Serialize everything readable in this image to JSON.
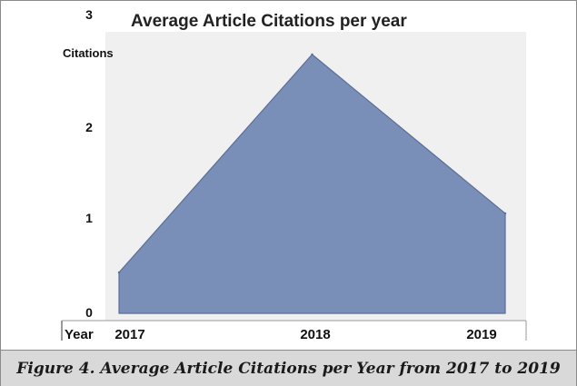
{
  "figure_caption": "Figure 4. Average Article Citations per Year from 2017 to 2019",
  "chart_data": {
    "type": "area",
    "title": "Average Article Citations per year",
    "ylabel": "Citations",
    "xlabel": "Year",
    "x": [
      "2017",
      "2018",
      "2019"
    ],
    "series": [
      {
        "values": [
          0.45,
          2.85,
          1.1
        ]
      }
    ],
    "ylim": [
      0,
      3
    ],
    "yticks": [
      "0",
      "1",
      "2",
      "3"
    ],
    "grid": false,
    "legend": "none",
    "colors": {
      "fill": "#7a8fb8",
      "stroke": "#5a6e99",
      "plot_bg": "#f0f0f0"
    }
  }
}
